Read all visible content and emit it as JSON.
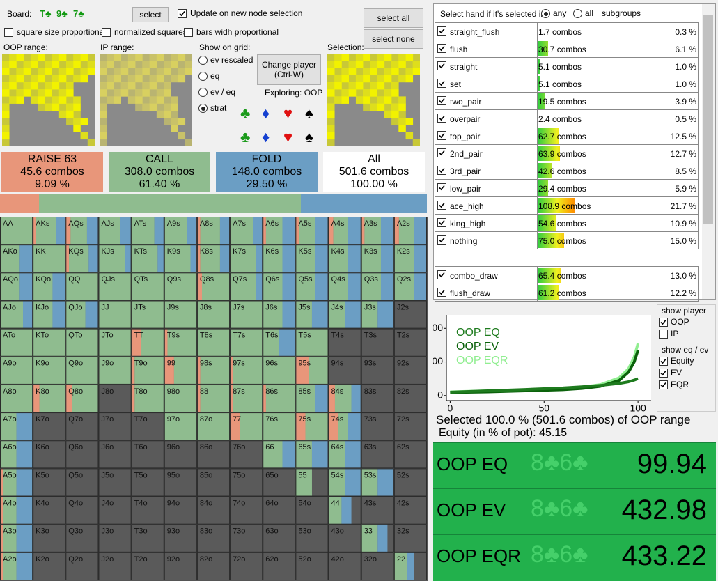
{
  "header": {
    "board_label": "Board:",
    "board_cards": [
      "T♣",
      "9♣",
      "7♣"
    ],
    "select_button": "select",
    "update_checkbox": "Update on new node selection",
    "select_all": "select all",
    "select_none": "select none"
  },
  "options": [
    "square size proportional",
    "normalized squares",
    "bars widh proportional"
  ],
  "ranges": {
    "oop_label": "OOP range:",
    "ip_label": "IP range:",
    "selection_label": "Selection:"
  },
  "show_on_grid": {
    "label": "Show on grid:",
    "options": [
      "ev rescaled",
      "eq",
      "ev / eq",
      "strat"
    ],
    "selected": 3
  },
  "change_player": [
    "Change player",
    "(Ctrl-W)"
  ],
  "exploring": "Exploring: OOP",
  "suits": [
    "♣",
    "♦",
    "♥",
    "♠"
  ],
  "suit_colors": [
    "#1a9a1a",
    "#1540d0",
    "#e01010",
    "#000000"
  ],
  "actions": [
    {
      "name": "RAISE 63",
      "combos": "45.6 combos",
      "percent": "9.09 %",
      "share": 9.09,
      "color": "#e8967a"
    },
    {
      "name": "CALL",
      "combos": "308.0 combos",
      "percent": "61.40 %",
      "share": 61.4,
      "color": "#8fbc8f"
    },
    {
      "name": "FOLD",
      "combos": "148.0 combos",
      "percent": "29.50 %",
      "share": 29.5,
      "color": "#6b9ec4"
    }
  ],
  "total": {
    "name": "All",
    "combos": "501.6 combos",
    "percent": "100.00 %"
  },
  "grid": {
    "hands": [
      [
        "AA",
        "AKs",
        "AQs",
        "AJs",
        "ATs",
        "A9s",
        "A8s",
        "A7s",
        "A6s",
        "A5s",
        "A4s",
        "A3s",
        "A2s"
      ],
      [
        "AKo",
        "KK",
        "KQs",
        "KJs",
        "KTs",
        "K9s",
        "K8s",
        "K7s",
        "K6s",
        "K5s",
        "K4s",
        "K3s",
        "K2s"
      ],
      [
        "AQo",
        "KQo",
        "QQ",
        "QJs",
        "QTs",
        "Q9s",
        "Q8s",
        "Q7s",
        "Q6s",
        "Q5s",
        "Q4s",
        "Q3s",
        "Q2s"
      ],
      [
        "AJo",
        "KJo",
        "QJo",
        "JJ",
        "JTs",
        "J9s",
        "J8s",
        "J7s",
        "J6s",
        "J5s",
        "J4s",
        "J3s",
        "J2s"
      ],
      [
        "ATo",
        "KTo",
        "QTo",
        "JTo",
        "TT",
        "T9s",
        "T8s",
        "T7s",
        "T6s",
        "T5s",
        "T4s",
        "T3s",
        "T2s"
      ],
      [
        "A9o",
        "K9o",
        "Q9o",
        "J9o",
        "T9o",
        "99",
        "98s",
        "97s",
        "96s",
        "95s",
        "94s",
        "93s",
        "92s"
      ],
      [
        "A8o",
        "K8o",
        "Q8o",
        "J8o",
        "T8o",
        "98o",
        "88",
        "87s",
        "86s",
        "85s",
        "84s",
        "83s",
        "82s"
      ],
      [
        "A7o",
        "K7o",
        "Q7o",
        "J7o",
        "T7o",
        "97o",
        "87o",
        "77",
        "76s",
        "75s",
        "74s",
        "73s",
        "72s"
      ],
      [
        "A6o",
        "K6o",
        "Q6o",
        "J6o",
        "T6o",
        "96o",
        "86o",
        "76o",
        "66",
        "65s",
        "64s",
        "63s",
        "62s"
      ],
      [
        "A5o",
        "K5o",
        "Q5o",
        "J5o",
        "T5o",
        "95o",
        "85o",
        "75o",
        "65o",
        "55",
        "54s",
        "53s",
        "52s"
      ],
      [
        "A4o",
        "K4o",
        "Q4o",
        "J4o",
        "T4o",
        "94o",
        "84o",
        "74o",
        "64o",
        "54o",
        "44",
        "43s",
        "42s"
      ],
      [
        "A3o",
        "K3o",
        "Q3o",
        "J3o",
        "T3o",
        "93o",
        "83o",
        "73o",
        "63o",
        "53o",
        "43o",
        "33",
        "32s"
      ],
      [
        "A2o",
        "K2o",
        "Q2o",
        "J2o",
        "T2o",
        "92o",
        "82o",
        "72o",
        "62o",
        "52o",
        "42o",
        "32o",
        "22"
      ]
    ],
    "mix": [
      [
        [
          0,
          1,
          0
        ],
        [
          0.1,
          0.6,
          0.3
        ],
        [
          0.15,
          0.5,
          0.35
        ],
        [
          0,
          0.65,
          0.35
        ],
        [
          0,
          0.7,
          0.3
        ],
        [
          0,
          0.7,
          0.3
        ],
        [
          0.1,
          0.6,
          0.3
        ],
        [
          0,
          0.7,
          0.3
        ],
        [
          0.1,
          0.5,
          0.4
        ],
        [
          0.1,
          0.5,
          0.4
        ],
        [
          0.15,
          0.45,
          0.4
        ],
        [
          0.1,
          0.5,
          0.4
        ],
        [
          0.15,
          0.45,
          0.4
        ]
      ],
      [
        [
          0,
          0.6,
          0.4
        ],
        [
          0,
          1,
          0
        ],
        [
          0.1,
          0.6,
          0.3
        ],
        [
          0,
          0.8,
          0.2
        ],
        [
          0,
          0.8,
          0.2
        ],
        [
          0,
          0.8,
          0.2
        ],
        [
          0.1,
          0.6,
          0.3
        ],
        [
          0,
          0.8,
          0.2
        ],
        [
          0,
          0.6,
          0.4
        ],
        [
          0,
          0.6,
          0.4
        ],
        [
          0,
          0.6,
          0.4
        ],
        [
          0,
          0.6,
          0.4
        ],
        [
          0,
          0.6,
          0.4
        ]
      ],
      [
        [
          0,
          0.6,
          0.4
        ],
        [
          0,
          0.6,
          0.4
        ],
        [
          0,
          1,
          0
        ],
        [
          0,
          1,
          0
        ],
        [
          0,
          1,
          0
        ],
        [
          0,
          1,
          0
        ],
        [
          0.15,
          0.85,
          0
        ],
        [
          0,
          0.8,
          0.2
        ],
        [
          0,
          0.6,
          0.4
        ],
        [
          0,
          0.6,
          0.4
        ],
        [
          0,
          0.6,
          0.4
        ],
        [
          0,
          0.6,
          0.4
        ],
        [
          0,
          0.6,
          0.4
        ]
      ],
      [
        [
          0,
          0.7,
          0.3
        ],
        [
          0,
          0.6,
          0.4
        ],
        [
          0,
          0.6,
          0.4
        ],
        [
          0,
          1,
          0
        ],
        [
          0,
          1,
          0
        ],
        [
          0,
          1,
          0
        ],
        [
          0,
          1,
          0
        ],
        [
          0,
          1,
          0
        ],
        [
          0,
          0.6,
          0.4
        ],
        [
          0,
          0.5,
          0.5
        ],
        [
          0,
          0.5,
          0.5
        ],
        [
          0,
          0.5,
          0.5
        ],
        null
      ],
      [
        [
          0,
          1,
          0
        ],
        [
          0,
          1,
          0
        ],
        [
          0,
          1,
          0
        ],
        [
          0,
          1,
          0
        ],
        [
          0.3,
          0.7,
          0
        ],
        [
          0.1,
          0.9,
          0
        ],
        [
          0,
          1,
          0
        ],
        [
          0,
          1,
          0
        ],
        [
          0,
          0.5,
          0.5
        ],
        [
          0,
          1,
          0
        ],
        null,
        null,
        null
      ],
      [
        [
          0,
          1,
          0
        ],
        [
          0,
          1,
          0
        ],
        [
          0,
          1,
          0
        ],
        [
          0,
          1,
          0
        ],
        [
          0.1,
          0.9,
          0
        ],
        [
          0.3,
          0.7,
          0
        ],
        [
          0.1,
          0.9,
          0
        ],
        [
          0.1,
          0.9,
          0
        ],
        [
          0,
          1,
          0
        ],
        [
          0.4,
          0.6,
          0
        ],
        null,
        null,
        null
      ],
      [
        [
          0,
          1,
          0
        ],
        [
          0.2,
          0.8,
          0
        ],
        [
          0.2,
          0.8,
          0
        ],
        null,
        [
          0.1,
          0.9,
          0
        ],
        [
          0,
          1,
          0
        ],
        [
          0.1,
          0.9,
          0
        ],
        [
          0.1,
          0.9,
          0
        ],
        [
          0.1,
          0.9,
          0
        ],
        [
          0,
          0.6,
          0.4
        ],
        [
          0.2,
          0.5,
          0.3
        ],
        null,
        null
      ],
      [
        [
          0,
          0.5,
          0.5
        ],
        null,
        null,
        null,
        null,
        [
          0,
          1,
          0
        ],
        [
          0,
          1,
          0
        ],
        [
          0.3,
          0.7,
          0
        ],
        [
          0,
          1,
          0
        ],
        [
          0.3,
          0.7,
          0
        ],
        [
          0.3,
          0.3,
          0.4
        ],
        null,
        null
      ],
      [
        [
          0,
          0.5,
          0.5
        ],
        null,
        null,
        null,
        null,
        null,
        null,
        null,
        [
          0,
          0.6,
          0.4
        ],
        [
          0,
          0.5,
          0.5
        ],
        [
          0,
          0.5,
          0.5
        ],
        null,
        null
      ],
      [
        [
          0.1,
          0.4,
          0.5
        ],
        null,
        null,
        null,
        null,
        null,
        null,
        null,
        null,
        [
          0,
          0.5,
          0
        ],
        [
          0,
          0.5,
          0.5
        ],
        [
          0,
          0.5,
          0.5
        ],
        null
      ],
      [
        [
          0.1,
          0.4,
          0.5
        ],
        null,
        null,
        null,
        null,
        null,
        null,
        null,
        null,
        null,
        [
          0,
          0.4,
          0.3
        ],
        null,
        null
      ],
      [
        [
          0.1,
          0.4,
          0.5
        ],
        null,
        null,
        null,
        null,
        null,
        null,
        null,
        null,
        null,
        null,
        [
          0,
          0.5,
          0.3
        ],
        null
      ],
      [
        [
          0.1,
          0.4,
          0.5
        ],
        null,
        null,
        null,
        null,
        null,
        null,
        null,
        null,
        null,
        null,
        null,
        [
          0,
          0.4,
          0.2
        ]
      ]
    ]
  },
  "hand_categories": {
    "header": "Select hand if it's selected in",
    "modes": [
      "any",
      "all",
      "subgroups"
    ],
    "selected_mode": 0,
    "made": [
      {
        "name": "straight_flush",
        "combos": 1.7,
        "combos_label": "1.7 combos",
        "percent": "0.3 %"
      },
      {
        "name": "flush",
        "combos": 30.7,
        "combos_label": "30.7 combos",
        "percent": "6.1 %"
      },
      {
        "name": "straight",
        "combos": 5.1,
        "combos_label": "5.1 combos",
        "percent": "1.0 %"
      },
      {
        "name": "set",
        "combos": 5.1,
        "combos_label": "5.1 combos",
        "percent": "1.0 %"
      },
      {
        "name": "two_pair",
        "combos": 19.5,
        "combos_label": "19.5 combos",
        "percent": "3.9 %"
      },
      {
        "name": "overpair",
        "combos": 2.4,
        "combos_label": "2.4 combos",
        "percent": "0.5 %"
      },
      {
        "name": "top_pair",
        "combos": 62.7,
        "combos_label": "62.7 combos",
        "percent": "12.5 %"
      },
      {
        "name": "2nd_pair",
        "combos": 63.9,
        "combos_label": "63.9 combos",
        "percent": "12.7 %"
      },
      {
        "name": "3rd_pair",
        "combos": 42.6,
        "combos_label": "42.6 combos",
        "percent": "8.5 %"
      },
      {
        "name": "low_pair",
        "combos": 29.4,
        "combos_label": "29.4 combos",
        "percent": "5.9 %"
      },
      {
        "name": "ace_high",
        "combos": 108.9,
        "combos_label": "108.9 combos",
        "percent": "21.7 %"
      },
      {
        "name": "king_high",
        "combos": 54.6,
        "combos_label": "54.6 combos",
        "percent": "10.9 %"
      },
      {
        "name": "nothing",
        "combos": 75.0,
        "combos_label": "75.0 combos",
        "percent": "15.0 %"
      }
    ],
    "draws": [
      {
        "name": "combo_draw",
        "combos": 65.4,
        "combos_label": "65.4 combos",
        "percent": "13.0 %"
      },
      {
        "name": "flush_draw",
        "combos": 61.2,
        "combos_label": "61.2 combos",
        "percent": "12.2 %"
      }
    ]
  },
  "chart_data": {
    "type": "line",
    "legend": "upper left",
    "x": [
      0,
      20,
      40,
      60,
      70,
      80,
      90,
      95,
      98,
      100
    ],
    "series": [
      {
        "name": "OOP EQ",
        "color": "#1e7b1e",
        "values": [
          20,
          28,
          36,
          45,
          52,
          60,
          72,
          82,
          92,
          100
        ]
      },
      {
        "name": "OOP EV",
        "color": "#0b620b",
        "values": [
          18,
          22,
          28,
          35,
          42,
          55,
          90,
          140,
          200,
          270
        ]
      },
      {
        "name": "OOP EQR",
        "color": "#90ee90",
        "values": [
          22,
          28,
          34,
          42,
          50,
          65,
          105,
          160,
          230,
          310
        ]
      }
    ],
    "xlim": [
      -2,
      107
    ],
    "ylim": [
      -30,
      480
    ],
    "xticks": [
      0,
      50,
      100
    ],
    "yticks": [
      0,
      200,
      400
    ]
  },
  "show_player": {
    "label": "show player",
    "options": [
      "OOP",
      "IP"
    ],
    "checked": [
      true,
      false
    ]
  },
  "show_eq_ev": {
    "label": "show eq / ev",
    "options": [
      "Equity",
      "EV",
      "EQR"
    ],
    "checked": [
      true,
      true,
      true
    ]
  },
  "selection_summary": "Selected 100.0 % (501.6 combos) of OOP range",
  "equity_summary": "Equity (in % of pot): 45.15",
  "stats": {
    "hand": "8♣6♣",
    "rows": [
      {
        "label": "OOP EQ",
        "value": 99.94
      },
      {
        "label": "OOP EV",
        "value": 432.98
      },
      {
        "label": "OOP EQR",
        "value": 433.22
      }
    ]
  }
}
